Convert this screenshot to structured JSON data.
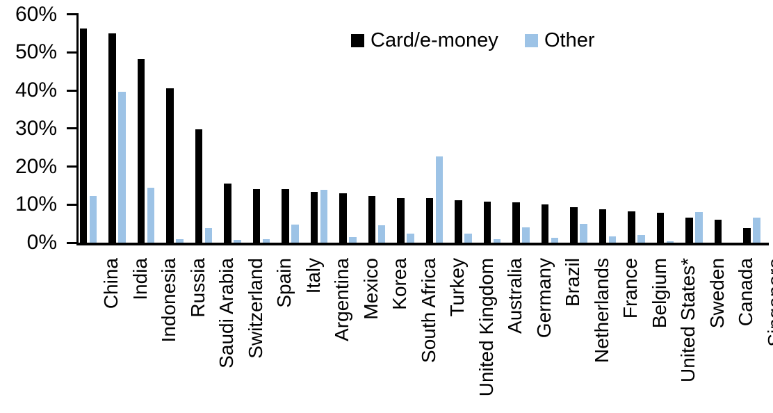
{
  "chart_data": {
    "type": "bar",
    "title": "",
    "xlabel": "",
    "ylabel": "",
    "categories": [
      "China",
      "India",
      "Indonesia",
      "Russia",
      "Saudi Arabia",
      "Switzerland",
      "Spain",
      "Italy",
      "Argentina",
      "Mexico",
      "Korea",
      "South Africa",
      "Turkey",
      "United Kingdom",
      "Australia",
      "Germany",
      "Brazil",
      "Netherlands",
      "France",
      "Belgium",
      "United States*",
      "Sweden",
      "Canada",
      "Singapore"
    ],
    "series": [
      {
        "name": "Card/e-money",
        "color": "#000000",
        "values": [
          56.3,
          55.0,
          48.2,
          40.5,
          29.8,
          15.6,
          14.1,
          14.0,
          13.3,
          13.0,
          12.2,
          11.7,
          11.6,
          11.1,
          10.8,
          10.6,
          10.0,
          9.3,
          8.7,
          8.2,
          7.9,
          6.6,
          6.0,
          3.9
        ]
      },
      {
        "name": "Other",
        "color": "#9dc3e6",
        "values": [
          12.3,
          39.7,
          14.5,
          1.0,
          3.9,
          0.8,
          1.0,
          4.7,
          13.9,
          1.4,
          4.6,
          2.4,
          22.6,
          2.3,
          1.0,
          4.0,
          1.2,
          4.9,
          1.6,
          2.1,
          0.3,
          8.1,
          0.0,
          6.6
        ]
      }
    ],
    "ylim": [
      0,
      60
    ],
    "y_tick_values": [
      0,
      10,
      20,
      30,
      40,
      50,
      60
    ],
    "y_tick_labels": [
      "0%",
      "10%",
      "20%",
      "30%",
      "40%",
      "50%",
      "60%"
    ],
    "grid": false,
    "legend_position": "top-center"
  }
}
